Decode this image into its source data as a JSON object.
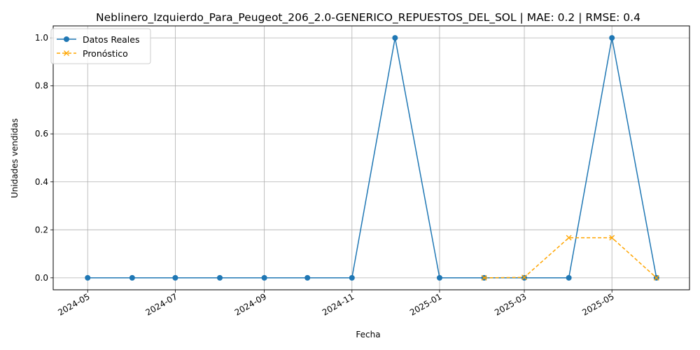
{
  "chart_data": {
    "type": "line",
    "title": "Neblinero_Izquierdo_Para_Peugeot_206_2.0-GENERICO_REPUESTOS_DEL_SOL | MAE: 0.2 | RMSE: 0.4",
    "xlabel": "Fecha",
    "ylabel": "Unidades vendidas",
    "xlim": [
      "2024-04-07",
      "2025-06-24"
    ],
    "ylim": [
      -0.05,
      1.05
    ],
    "grid": true,
    "legend_position": "top-left",
    "x_ticks": [
      "2024-05",
      "2024-07",
      "2024-09",
      "2024-11",
      "2025-01",
      "2025-03",
      "2025-05"
    ],
    "y_ticks": [
      "0.0",
      "0.2",
      "0.4",
      "0.6",
      "0.8",
      "1.0"
    ],
    "series": [
      {
        "name": "Datos Reales",
        "color": "#1f77b4",
        "style": "solid",
        "marker": "circle",
        "x": [
          "2024-05-01",
          "2024-06-01",
          "2024-07-01",
          "2024-08-01",
          "2024-09-01",
          "2024-10-01",
          "2024-11-01",
          "2024-12-01",
          "2025-01-01",
          "2025-02-01",
          "2025-03-01",
          "2025-04-01",
          "2025-05-01",
          "2025-06-01"
        ],
        "values": [
          0,
          0,
          0,
          0,
          0,
          0,
          0,
          1,
          0,
          0,
          0,
          0,
          1,
          0
        ]
      },
      {
        "name": "Pronóstico",
        "color": "#ffa500",
        "style": "dashed",
        "marker": "x",
        "x": [
          "2025-02-01",
          "2025-03-01",
          "2025-04-01",
          "2025-05-01",
          "2025-06-01"
        ],
        "values": [
          0.0,
          0.002,
          0.167,
          0.167,
          0.0
        ]
      }
    ]
  }
}
